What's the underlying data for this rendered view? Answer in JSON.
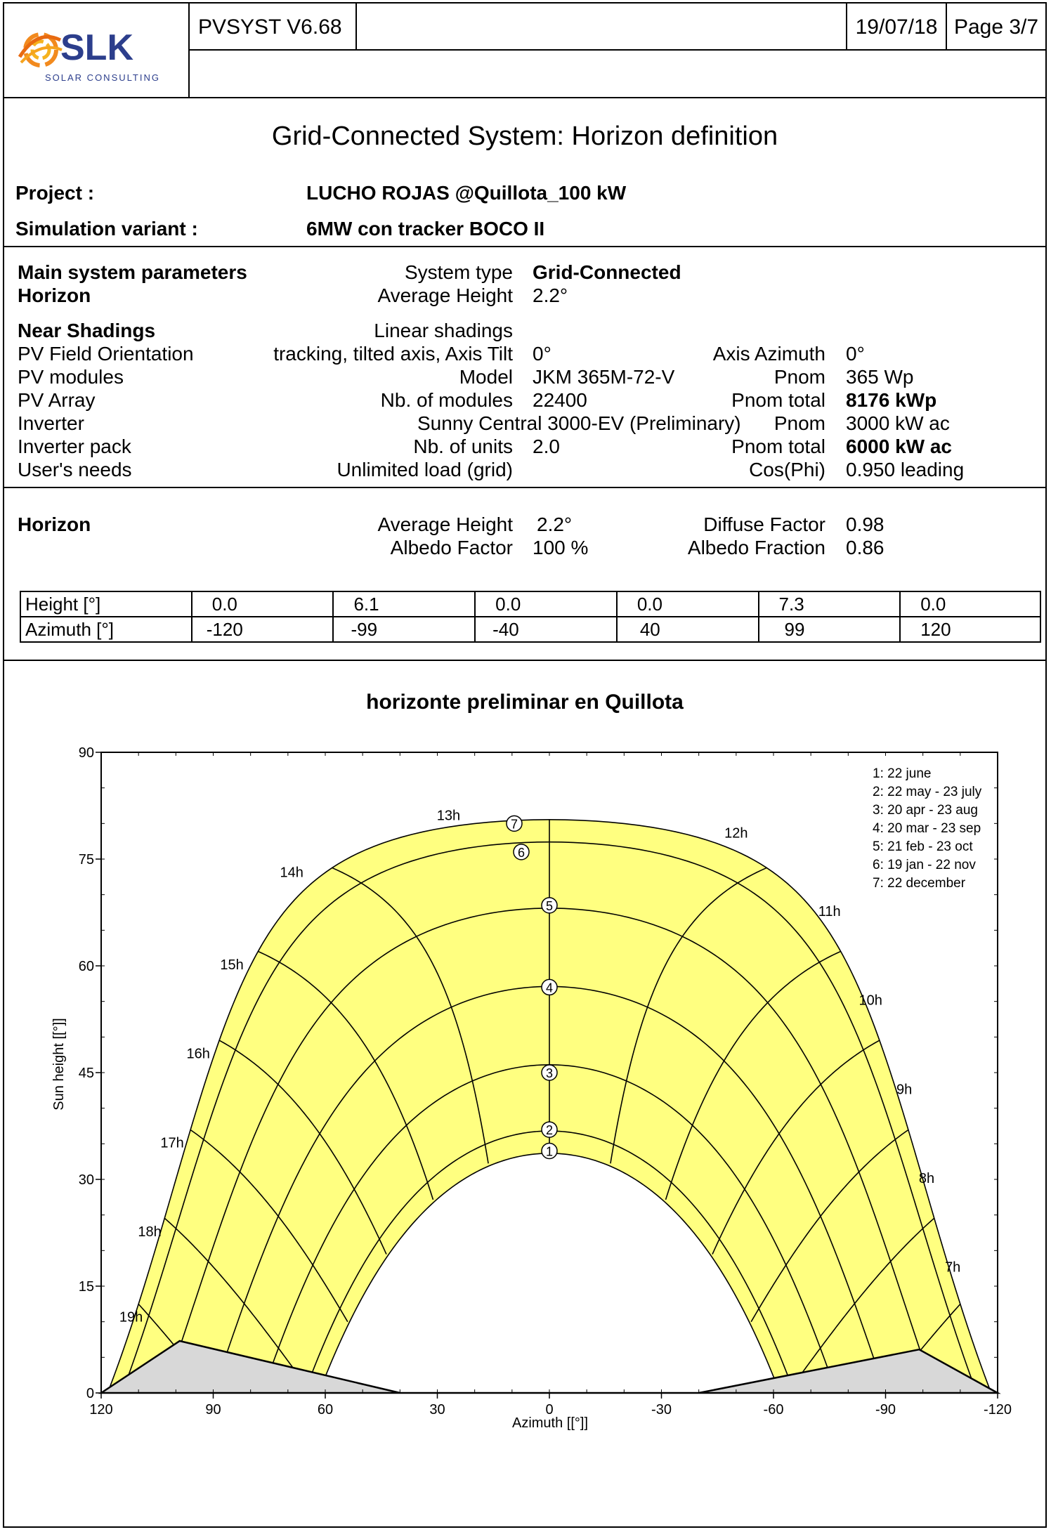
{
  "header": {
    "logo": {
      "brand": "SLK",
      "tagline": "SOLAR CONSULTING"
    },
    "software": "PVSYST V6.68",
    "date": "19/07/18",
    "page": "Page 3/7"
  },
  "title": "Grid-Connected System: Horizon definition",
  "project": {
    "label": "Project :",
    "value": "LUCHO ROJAS @Quillota_100 kW"
  },
  "variant": {
    "label": "Simulation variant :",
    "value": "6MW con tracker BOCO II"
  },
  "params": {
    "main_label": "Main system parameters",
    "system_type_label": "System type",
    "system_type_value": "Grid-Connected",
    "horizon_label": "Horizon",
    "avg_height_label": "Average Height",
    "avg_height_value": "2.2°",
    "near_shadings_label": "Near Shadings",
    "near_shadings_value": "Linear shadings",
    "pv_field_label": "PV Field Orientation",
    "pv_field_value": "tracking, tilted axis, Axis Tilt",
    "axis_tilt_value": "0°",
    "axis_azimuth_label": "Axis Azimuth",
    "axis_azimuth_value": "0°",
    "pv_modules_label": "PV modules",
    "model_label": "Model",
    "model_value": "JKM 365M-72-V",
    "pnom_label": "Pnom",
    "pnom_value": "365 Wp",
    "pv_array_label": "PV Array",
    "nb_modules_label": "Nb. of modules",
    "nb_modules_value": "22400",
    "pnom_total_label": "Pnom total",
    "pnom_total_value": "8176 kWp",
    "inverter_label": "Inverter",
    "inverter_value": "Sunny Central 3000-EV (Preliminary)",
    "inv_pnom_label": "Pnom",
    "inv_pnom_value": "3000 kW ac",
    "inverter_pack_label": "Inverter pack",
    "nb_units_label": "Nb. of units",
    "nb_units_value": "2.0",
    "pack_pnom_total_label": "Pnom total",
    "pack_pnom_total_value": "6000 kW ac",
    "users_needs_label": "User's needs",
    "users_needs_value": "Unlimited load (grid)",
    "cosphi_label": "Cos(Phi)",
    "cosphi_value": "0.950 leading"
  },
  "horizon": {
    "label": "Horizon",
    "avg_height_label": "Average Height",
    "avg_height_value": "2.2°",
    "diffuse_label": "Diffuse Factor",
    "diffuse_value": "0.98",
    "albedo_label": "Albedo Factor",
    "albedo_value": "100 %",
    "albedo_fraction_label": "Albedo Fraction",
    "albedo_fraction_value": "0.86",
    "table": {
      "row_labels": [
        "Height [°]",
        "Azimuth [°]"
      ],
      "heights": [
        "0.0",
        "6.1",
        "0.0",
        "0.0",
        "7.3",
        "0.0"
      ],
      "azimuths": [
        "-120",
        "-99",
        "-40",
        "40",
        "99",
        "120"
      ]
    }
  },
  "chart_data": {
    "type": "line",
    "title": "horizonte preliminar en Quillota",
    "xlabel": "Azimuth [[°]]",
    "ylabel": "Sun height [[°]]",
    "xlim": [
      120,
      -120
    ],
    "ylim": [
      0,
      90
    ],
    "x_ticks": [
      "120",
      "90",
      "60",
      "30",
      "0",
      "-30",
      "-60",
      "-90",
      "-120"
    ],
    "y_ticks": [
      "0",
      "15",
      "30",
      "45",
      "60",
      "75",
      "90"
    ],
    "legend": [
      "1: 22 june",
      "2: 22 may - 23 july",
      "3: 20 apr - 23 aug",
      "4: 20 mar - 23 sep",
      "5: 21 feb - 23 oct",
      "6: 19 jan - 22 nov",
      "7: 22 december"
    ],
    "legend_position": "top-right",
    "hour_labels": [
      {
        "text": "7h",
        "az": -108,
        "h": 17
      },
      {
        "text": "8h",
        "az": -101,
        "h": 29.5
      },
      {
        "text": "9h",
        "az": -95,
        "h": 42
      },
      {
        "text": "10h",
        "az": -86,
        "h": 54.5
      },
      {
        "text": "11h",
        "az": -75,
        "h": 67
      },
      {
        "text": "12h",
        "az": -50,
        "h": 78
      },
      {
        "text": "13h",
        "az": 27,
        "h": 80.5
      },
      {
        "text": "14h",
        "az": 69,
        "h": 72.5
      },
      {
        "text": "15h",
        "az": 85,
        "h": 59.5
      },
      {
        "text": "16h",
        "az": 94,
        "h": 47
      },
      {
        "text": "17h",
        "az": 101,
        "h": 34.5
      },
      {
        "text": "18h",
        "az": 107,
        "h": 22
      },
      {
        "text": "19h",
        "az": 112,
        "h": 10
      }
    ],
    "date_marker_heights": [
      34,
      37,
      45,
      57,
      68.5,
      76,
      80
    ],
    "horizon_profile": {
      "azimuth": [
        120,
        99,
        40,
        -40,
        -99,
        -120
      ],
      "height": [
        0,
        7.3,
        0,
        0,
        6.1,
        0
      ]
    }
  }
}
